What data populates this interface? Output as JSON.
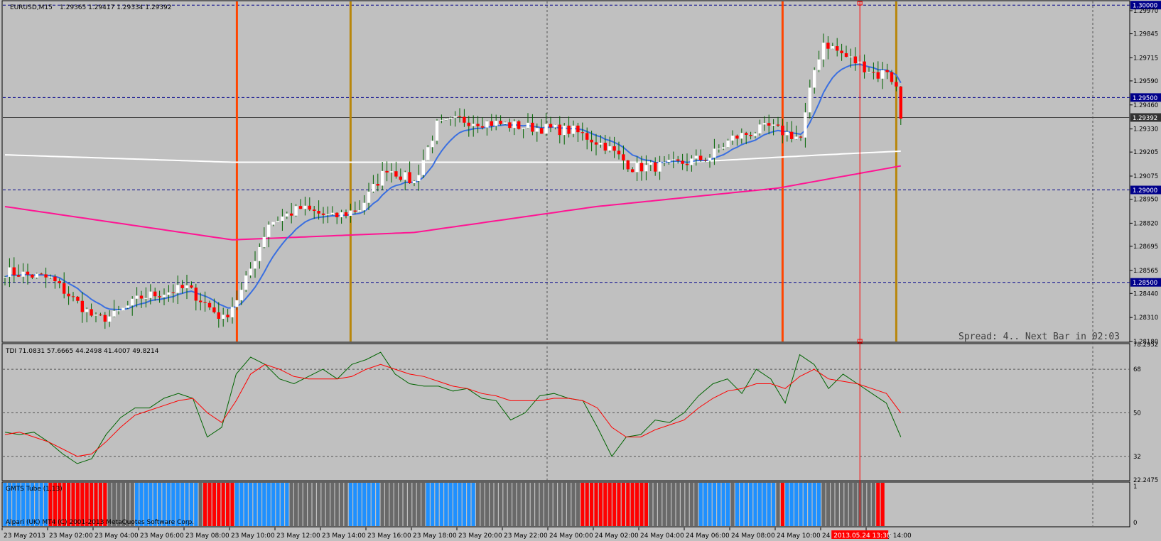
{
  "window": {
    "symbol_label": "EURUSD,M15",
    "ohlc_label": "1.29365 1.29417 1.29334 1.29392",
    "spread_text": "Spread: 4.. Next Bar in 02:03"
  },
  "tdi": {
    "label": "TDI 71.0831 57.6665 44.2498 41.4007 49.8214",
    "scale": [
      "78.2952",
      "68",
      "50",
      "32",
      "22.2475"
    ]
  },
  "gmts": {
    "label": "GMTS Tube (1,13)",
    "scale": [
      "1",
      "0"
    ],
    "footer": "Alpari (UK) MT4 (C) 2001-2013 MetaQuotes Software Corp."
  },
  "time_axis": {
    "labels": [
      "23 May 2013",
      "23 May 02:00",
      "23 May 04:00",
      "23 May 06:00",
      "23 May 08:00",
      "23 May 10:00",
      "23 May 12:00",
      "23 May 14:00",
      "23 May 16:00",
      "23 May 18:00",
      "23 May 20:00",
      "23 May 22:00",
      "24 May 00:00",
      "24 May 02:00",
      "24 May 04:00",
      "24 May 06:00",
      "24 May 08:00",
      "24 May 10:00",
      "24 May 12:00",
      "24 May 14:00"
    ],
    "crosshair_label": "2013.05.24 13:30"
  },
  "colors": {
    "background": "#c0c0c0",
    "bull": "#ffffff",
    "bear": "#ff0000",
    "wick": "#006400",
    "ma_fast": "#3a6fe0",
    "ma_mid": "#ffffff",
    "ma_slow": "#ff1493",
    "vline_orange": "#ff4500",
    "vline_gold": "#b8860b",
    "level_line": "#00008b",
    "tdi_green": "#006400",
    "tdi_red": "#ff0000",
    "tube_blue": "#1e90ff",
    "tube_red": "#ff0000",
    "tube_gray": "#696969"
  },
  "chart_data": [
    {
      "type": "candlestick",
      "title": "EURUSD,M15",
      "ylim": [
        1.2818,
        1.3002
      ],
      "price_ticks": [
        "1.29970",
        "1.29845",
        "1.29715",
        "1.29590",
        "1.29460",
        "1.29330",
        "1.29205",
        "1.29075",
        "1.28950",
        "1.28820",
        "1.28695",
        "1.28565",
        "1.28440",
        "1.28310",
        "1.28180"
      ],
      "levels": [
        {
          "value": 1.3,
          "label": "1.30000"
        },
        {
          "value": 1.295,
          "label": "1.29500"
        },
        {
          "value": 1.29,
          "label": "1.29000"
        },
        {
          "value": 1.285,
          "label": "1.28500"
        }
      ],
      "current_price": {
        "value": 1.29392,
        "label": "1.29392"
      },
      "vertical_markers": [
        {
          "bar": 51,
          "color": "orange"
        },
        {
          "bar": 76,
          "color": "gold"
        },
        {
          "bar": 171,
          "color": "orange"
        },
        {
          "bar": 196,
          "color": "gold"
        }
      ],
      "crosshair_bar": 188,
      "waypoints": [
        [
          0,
          1.2856
        ],
        [
          10,
          1.2852
        ],
        [
          20,
          1.283
        ],
        [
          24,
          1.2832
        ],
        [
          30,
          1.2842
        ],
        [
          40,
          1.2847
        ],
        [
          48,
          1.283
        ],
        [
          52,
          1.2845
        ],
        [
          58,
          1.2882
        ],
        [
          65,
          1.289
        ],
        [
          72,
          1.2885
        ],
        [
          78,
          1.289
        ],
        [
          84,
          1.2912
        ],
        [
          90,
          1.2904
        ],
        [
          95,
          1.2935
        ],
        [
          100,
          1.2938
        ],
        [
          108,
          1.2936
        ],
        [
          115,
          1.2934
        ],
        [
          125,
          1.2932
        ],
        [
          132,
          1.2924
        ],
        [
          138,
          1.2912
        ],
        [
          145,
          1.2913
        ],
        [
          150,
          1.2915
        ],
        [
          155,
          1.2918
        ],
        [
          160,
          1.2928
        ],
        [
          168,
          1.2934
        ],
        [
          175,
          1.2928
        ],
        [
          178,
          1.2965
        ],
        [
          180,
          1.298
        ],
        [
          185,
          1.2972
        ],
        [
          188,
          1.2968
        ],
        [
          192,
          1.2962
        ],
        [
          194,
          1.2965
        ],
        [
          196,
          1.2955
        ],
        [
          197,
          1.2939
        ]
      ],
      "ma200_points": [
        [
          0,
          1.2891
        ],
        [
          50,
          1.2873
        ],
        [
          90,
          1.2877
        ],
        [
          130,
          1.2891
        ],
        [
          170,
          1.2901
        ],
        [
          197,
          1.2913
        ]
      ],
      "ma_white_points": [
        [
          0,
          1.2919
        ],
        [
          50,
          1.2915
        ],
        [
          100,
          1.2915
        ],
        [
          150,
          1.2915
        ],
        [
          180,
          1.2919
        ],
        [
          197,
          1.2921
        ]
      ]
    },
    {
      "type": "line",
      "title": "TDI",
      "ylim": [
        22.2475,
        78.2952
      ],
      "levels": [
        68,
        50,
        32
      ],
      "series": [
        {
          "color": "green",
          "values": [
            42,
            41,
            42,
            38,
            33,
            29,
            31,
            41,
            48,
            52,
            52,
            56,
            58,
            56,
            40,
            44,
            66,
            73,
            70,
            64,
            62,
            65,
            68,
            64,
            70,
            72,
            75,
            66,
            62,
            61,
            61,
            59,
            60,
            56,
            55,
            47,
            50,
            57,
            58,
            56,
            55,
            44,
            32,
            40,
            41,
            47,
            46,
            50,
            57,
            62,
            64,
            58,
            68,
            64,
            54,
            74,
            70,
            60,
            66,
            62,
            58,
            54,
            40
          ]
        },
        {
          "color": "red",
          "values": [
            41,
            42,
            40,
            38,
            35,
            32,
            33,
            38,
            44,
            49,
            51,
            53,
            55,
            56,
            50,
            46,
            55,
            66,
            70,
            68,
            65,
            64,
            64,
            64,
            65,
            68,
            70,
            68,
            66,
            65,
            63,
            61,
            60,
            58,
            57,
            55,
            55,
            55,
            56,
            56,
            55,
            52,
            44,
            40,
            40,
            43,
            45,
            47,
            52,
            56,
            59,
            60,
            62,
            62,
            60,
            65,
            68,
            64,
            63,
            62,
            60,
            58,
            50
          ]
        }
      ]
    },
    {
      "type": "bar",
      "title": "GMTS Tube (1,13)",
      "ylim": [
        0,
        1
      ],
      "segments": [
        {
          "bars": 10,
          "color": "blue"
        },
        {
          "bars": 13,
          "color": "red"
        },
        {
          "bars": 6,
          "color": "gray"
        },
        {
          "bars": 14,
          "color": "blue"
        },
        {
          "bars": 1,
          "color": "gray"
        },
        {
          "bars": 7,
          "color": "red"
        },
        {
          "bars": 12,
          "color": "blue"
        },
        {
          "bars": 13,
          "color": "gray"
        },
        {
          "bars": 7,
          "color": "blue"
        },
        {
          "bars": 10,
          "color": "gray"
        },
        {
          "bars": 11,
          "color": "blue"
        },
        {
          "bars": 23,
          "color": "gray"
        },
        {
          "bars": 15,
          "color": "red"
        },
        {
          "bars": 11,
          "color": "gray"
        },
        {
          "bars": 7,
          "color": "blue"
        },
        {
          "bars": 1,
          "color": "gray"
        },
        {
          "bars": 9,
          "color": "blue"
        },
        {
          "bars": 1,
          "color": "gray"
        },
        {
          "bars": 1,
          "color": "red"
        },
        {
          "bars": 8,
          "color": "blue"
        },
        {
          "bars": 12,
          "color": "gray"
        },
        {
          "bars": 2,
          "color": "red"
        }
      ]
    }
  ]
}
